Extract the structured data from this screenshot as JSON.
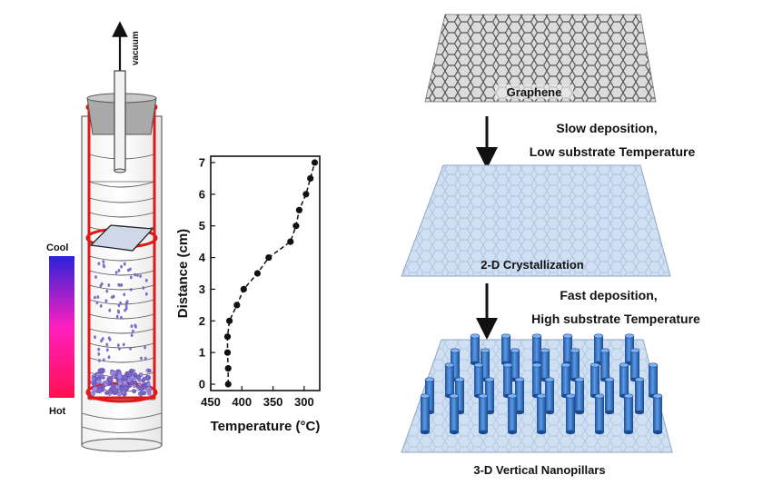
{
  "furnace": {
    "vacuum_label": "vacuum",
    "cool_label": "Cool",
    "hot_label": "Hot"
  },
  "chart_data": {
    "type": "line",
    "xlabel": "Temperature (°C)",
    "ylabel": "Distance (cm)",
    "xlim": [
      450,
      275
    ],
    "ylim": [
      -0.2,
      7.2
    ],
    "x_ticks": [
      450,
      400,
      350,
      300
    ],
    "y_ticks": [
      0,
      1,
      2,
      3,
      4,
      5,
      6,
      7
    ],
    "points": [
      {
        "x": 422,
        "y": 0
      },
      {
        "x": 422,
        "y": 0.5
      },
      {
        "x": 423,
        "y": 1
      },
      {
        "x": 423,
        "y": 1.5
      },
      {
        "x": 420,
        "y": 2
      },
      {
        "x": 408,
        "y": 2.5
      },
      {
        "x": 397,
        "y": 3
      },
      {
        "x": 375,
        "y": 3.5
      },
      {
        "x": 357,
        "y": 4
      },
      {
        "x": 322,
        "y": 4.5
      },
      {
        "x": 313,
        "y": 5
      },
      {
        "x": 308,
        "y": 5.5
      },
      {
        "x": 297,
        "y": 6
      },
      {
        "x": 290,
        "y": 6.5
      },
      {
        "x": 283,
        "y": 7
      }
    ],
    "grid": false
  },
  "stages": {
    "graphene": "Graphene",
    "step1_line1": "Slow deposition,",
    "step1_line2": "Low substrate Temperature",
    "crystal": "2-D Crystallization",
    "step2_line1": "Fast  deposition,",
    "step2_line2": "High substrate Temperature",
    "pillars": "3-D Vertical Nanopillars"
  },
  "colors": {
    "furnace_red": "#e01818",
    "gradient_top": "#2a22d8",
    "gradient_mid": "#ff1fbf",
    "gradient_bottom": "#ff1050",
    "sheet_blue": "#cfe0f3",
    "pillar_blue": "#2f6fc8"
  }
}
